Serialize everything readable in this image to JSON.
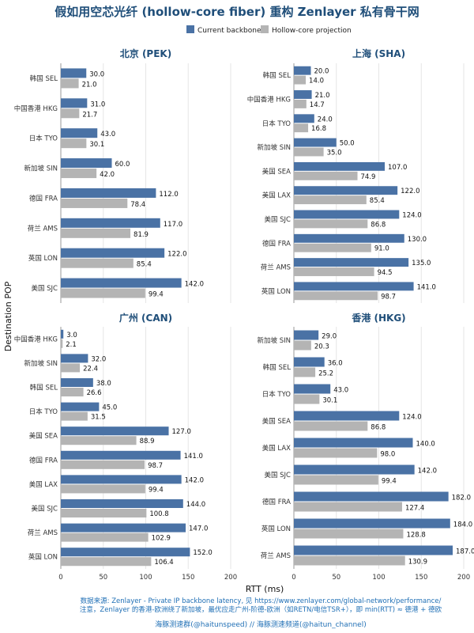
{
  "title": "假如用空芯光纤 (hollow-core fiber) 重构 Zenlayer 私有骨干网",
  "legend": {
    "current_label": "Current backbone",
    "hollow_label": "Hollow-core projection",
    "position": "top-center"
  },
  "colors": {
    "current": "#4a72a5",
    "hollow": "#b4b4b4",
    "title": "#1f4e79",
    "footer": "#1f6fb5",
    "grid": "#e6e6e6"
  },
  "xlabel": "RTT (ms)",
  "ylabel": "Destination POP",
  "footer": {
    "line1": "数据来源: Zenlayer - Private IP backbone latency, 见 https://www.zenlayer.com/global-network/performance/",
    "line2": "注意，Zenlayer 的香港-欧洲绕了新加坡，最优应走广州-阶德-欧洲（如RETN/电信TSR+），即 min(RTT) ≈ 德港 + 德欧",
    "line3": "海豚测速群(@haitunspeed)   //   海豚测速频道(@haitun_channel)"
  },
  "chart_data": [
    {
      "type": "bar",
      "title": "北京 (PEK)",
      "xlim": [
        0,
        200
      ],
      "xticks": [
        0,
        50,
        100,
        150,
        200
      ],
      "grid": true,
      "categories": [
        "韩国 SEL",
        "中国香港 HKG",
        "日本 TYO",
        "新加坡 SIN",
        "德国 FRA",
        "荷兰 AMS",
        "英国 LON",
        "美国 SJC"
      ],
      "series": [
        {
          "name": "Current backbone",
          "values": [
            30.0,
            31.0,
            43.0,
            60.0,
            112.0,
            117.0,
            122.0,
            142.0
          ]
        },
        {
          "name": "Hollow-core projection",
          "values": [
            21.0,
            21.7,
            30.1,
            42.0,
            78.4,
            81.9,
            85.4,
            99.4
          ]
        }
      ]
    },
    {
      "type": "bar",
      "title": "上海 (SHA)",
      "xlim": [
        0,
        200
      ],
      "xticks": [
        0,
        50,
        100,
        150,
        200
      ],
      "grid": true,
      "categories": [
        "韩国 SEL",
        "中国香港 HKG",
        "日本 TYO",
        "新加坡 SIN",
        "美国 SEA",
        "美国 LAX",
        "美国 SJC",
        "德国 FRA",
        "荷兰 AMS",
        "英国 LON"
      ],
      "series": [
        {
          "name": "Current backbone",
          "values": [
            20.0,
            21.0,
            24.0,
            50.0,
            107.0,
            122.0,
            124.0,
            130.0,
            135.0,
            141.0
          ]
        },
        {
          "name": "Hollow-core projection",
          "values": [
            14.0,
            14.7,
            16.8,
            35.0,
            74.9,
            85.4,
            86.8,
            91.0,
            94.5,
            98.7
          ]
        }
      ]
    },
    {
      "type": "bar",
      "title": "广州 (CAN)",
      "xlim": [
        0,
        200
      ],
      "xticks": [
        0,
        50,
        100,
        150,
        200
      ],
      "grid": true,
      "categories": [
        "中国香港 HKG",
        "新加坡 SIN",
        "韩国 SEL",
        "日本 TYO",
        "美国 SEA",
        "德国 FRA",
        "美国 LAX",
        "美国 SJC",
        "荷兰 AMS",
        "英国 LON"
      ],
      "series": [
        {
          "name": "Current backbone",
          "values": [
            3.0,
            32.0,
            38.0,
            45.0,
            127.0,
            141.0,
            142.0,
            144.0,
            147.0,
            152.0
          ]
        },
        {
          "name": "Hollow-core projection",
          "values": [
            2.1,
            22.4,
            26.6,
            31.5,
            88.9,
            98.7,
            99.4,
            100.8,
            102.9,
            106.4
          ]
        }
      ]
    },
    {
      "type": "bar",
      "title": "香港 (HKG)",
      "xlim": [
        0,
        200
      ],
      "xticks": [
        0,
        50,
        100,
        150,
        200
      ],
      "grid": true,
      "categories": [
        "新加坡 SIN",
        "韩国 SEL",
        "日本 TYO",
        "美国 SEA",
        "美国 LAX",
        "美国 SJC",
        "德国 FRA",
        "英国 LON",
        "荷兰 AMS"
      ],
      "series": [
        {
          "name": "Current backbone",
          "values": [
            29.0,
            36.0,
            43.0,
            124.0,
            140.0,
            142.0,
            182.0,
            184.0,
            187.0
          ]
        },
        {
          "name": "Hollow-core projection",
          "values": [
            20.3,
            25.2,
            30.1,
            86.8,
            98.0,
            99.4,
            127.4,
            128.8,
            130.9
          ]
        }
      ]
    }
  ]
}
